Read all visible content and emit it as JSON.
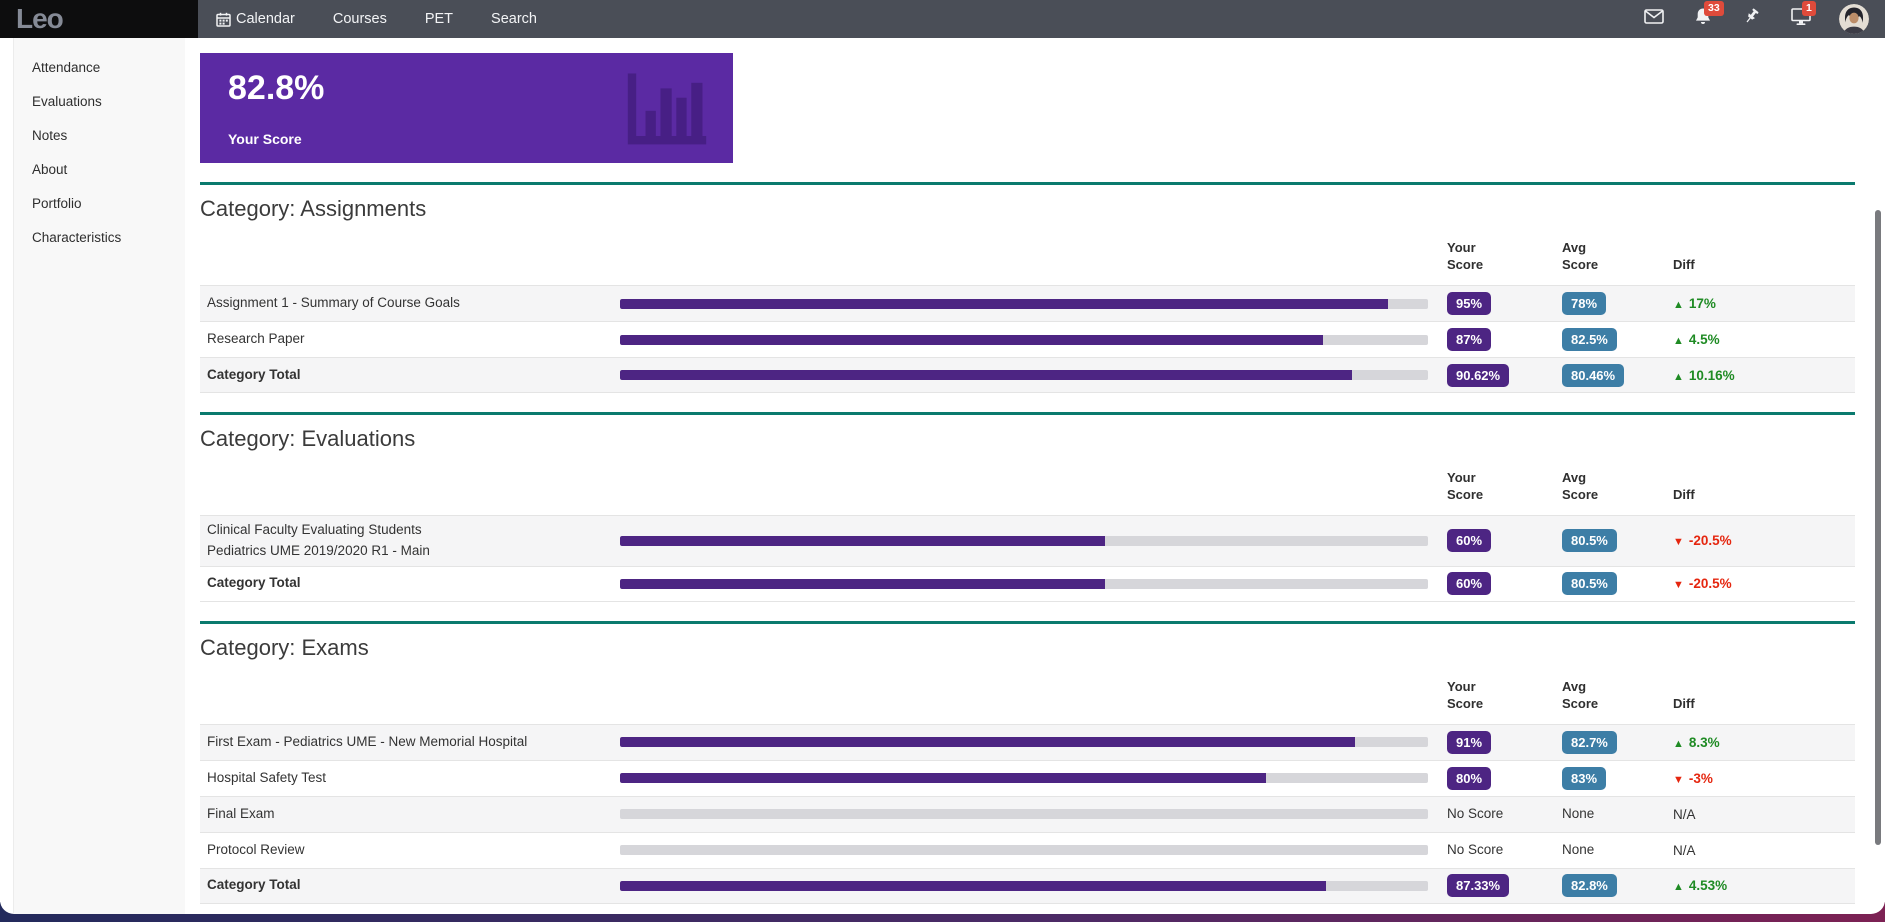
{
  "navbar": {
    "brand": "Leo",
    "items": [
      {
        "label": "Calendar",
        "icon": "calendar-icon"
      },
      {
        "label": "Courses"
      },
      {
        "label": "PET"
      },
      {
        "label": "Search"
      }
    ],
    "bell_badge": "33",
    "monitor_badge": "1"
  },
  "sidebar": {
    "items": [
      "Attendance",
      "Evaluations",
      "Notes",
      "About",
      "Portfolio",
      "Characteristics"
    ]
  },
  "score_card": {
    "value": "82.8%",
    "label": "Your Score"
  },
  "column_headers": {
    "your": "Your Score",
    "avg": "Avg Score",
    "diff": "Diff"
  },
  "categories": [
    {
      "title": "Category: Assignments",
      "rows": [
        {
          "name": "Assignment 1 - Summary of Course Goals",
          "bar_pct": 95,
          "your": "95%",
          "avg": "78%",
          "diff": "17%",
          "diff_dir": "up",
          "total": false
        },
        {
          "name": "Research Paper",
          "bar_pct": 87,
          "your": "87%",
          "avg": "82.5%",
          "diff": "4.5%",
          "diff_dir": "up",
          "total": false
        },
        {
          "name": "Category Total",
          "bar_pct": 90.62,
          "your": "90.62%",
          "avg": "80.46%",
          "diff": "10.16%",
          "diff_dir": "up",
          "total": true
        }
      ]
    },
    {
      "title": "Category: Evaluations",
      "rows": [
        {
          "name": "Clinical Faculty Evaluating Students",
          "name2": "Pediatrics UME 2019/2020 R1 - Main",
          "bar_pct": 60,
          "your": "60%",
          "avg": "80.5%",
          "diff": "-20.5%",
          "diff_dir": "down",
          "total": false
        },
        {
          "name": "Category Total",
          "bar_pct": 60,
          "your": "60%",
          "avg": "80.5%",
          "diff": "-20.5%",
          "diff_dir": "down",
          "total": true
        }
      ]
    },
    {
      "title": "Category: Exams",
      "rows": [
        {
          "name": "First Exam - Pediatrics UME - New Memorial Hospital",
          "bar_pct": 91,
          "your": "91%",
          "avg": "82.7%",
          "diff": "8.3%",
          "diff_dir": "up",
          "total": false
        },
        {
          "name": "Hospital Safety Test",
          "bar_pct": 80,
          "your": "80%",
          "avg": "83%",
          "diff": "-3%",
          "diff_dir": "down",
          "total": false
        },
        {
          "name": "Final Exam",
          "bar_pct": 0,
          "your": "No Score",
          "avg": "None",
          "diff": "N/A",
          "diff_dir": "none",
          "total": false
        },
        {
          "name": "Protocol Review",
          "bar_pct": 0,
          "your": "No Score",
          "avg": "None",
          "diff": "N/A",
          "diff_dir": "none",
          "total": false
        },
        {
          "name": "Category Total",
          "bar_pct": 87.33,
          "your": "87.33%",
          "avg": "82.8%",
          "diff": "4.53%",
          "diff_dir": "up",
          "total": true
        }
      ]
    }
  ],
  "colors": {
    "nav_bg": "#4a4e57",
    "brand_bg": "#0d0d0e",
    "brand_text": "#858a96",
    "card_bg": "#5b2aa3",
    "card_icon": "#471f85",
    "divider": "#0b7a6e",
    "bar_fill": "#4d2583",
    "bar_track": "#d6d6da",
    "badge_your": "#4d2583",
    "badge_avg": "#3d7ea6",
    "diff_up": "#1f8b24",
    "diff_down": "#e5260f",
    "stripe": "#f5f5f6",
    "row_border": "#e4e4e4",
    "sidebar_bg": "#f8f8f8",
    "badge_alert": "#df4b3b",
    "bottom_left": "#232a5c",
    "bottom_right": "#7c2153",
    "scrollbar": "#797a7e"
  }
}
